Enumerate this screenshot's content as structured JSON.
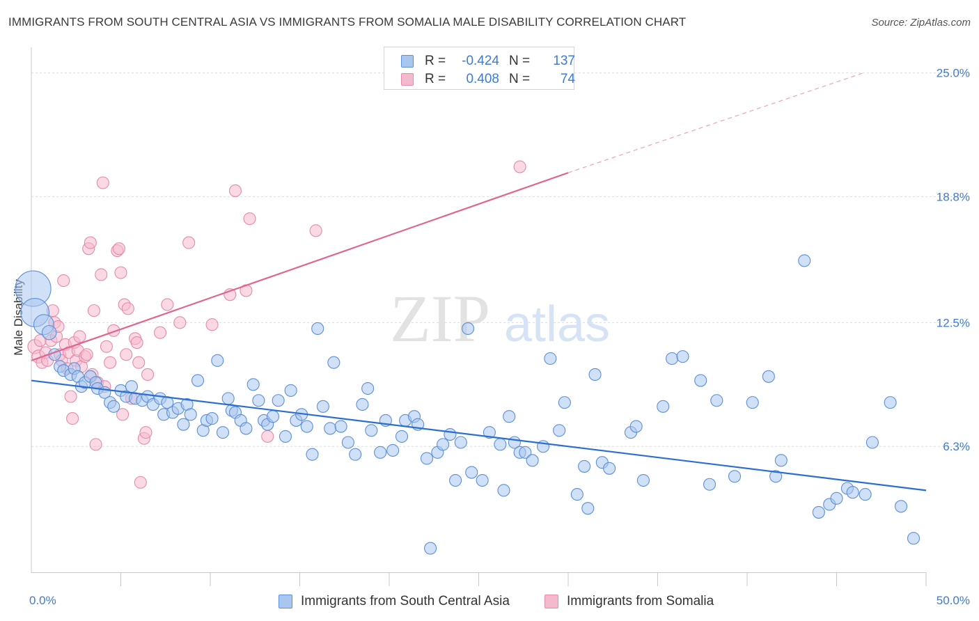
{
  "title": "IMMIGRANTS FROM SOUTH CENTRAL ASIA VS IMMIGRANTS FROM SOMALIA MALE DISABILITY CORRELATION CHART",
  "source": "Source: ZipAtlas.com",
  "watermark": {
    "zip": "ZIP",
    "atlas": "atlas"
  },
  "colors": {
    "blue_fill": "#a9c6ee",
    "blue_stroke": "#5b8fd8",
    "blue_line": "#2a6fd0",
    "pink_fill": "#f5b9cd",
    "pink_stroke": "#e58aaa",
    "pink_line": "#e06691",
    "tick_text": "#3d7bd6",
    "grid": "#dcdcdc"
  },
  "stats": {
    "rows": [
      {
        "r_label": "R =",
        "r_value": "-0.424",
        "n_label": "N =",
        "n_value": "137",
        "series": "blue"
      },
      {
        "r_label": "R =",
        "r_value": "0.408",
        "n_label": "N =",
        "n_value": "74",
        "series": "pink"
      }
    ]
  },
  "legend": {
    "items": [
      {
        "label": "Immigrants from South Central Asia",
        "series": "blue"
      },
      {
        "label": "Immigrants from Somalia",
        "series": "pink"
      }
    ]
  },
  "chart_data": {
    "type": "scatter",
    "title": "IMMIGRANTS FROM SOUTH CENTRAL ASIA VS IMMIGRANTS FROM SOMALIA MALE DISABILITY CORRELATION CHART",
    "xlabel": "",
    "ylabel": "Male Disability",
    "xlim": [
      0,
      50
    ],
    "ylim": [
      0,
      26
    ],
    "x_tick_labels": [
      "0.0%",
      "50.0%"
    ],
    "y_ticks": [
      {
        "value": 6.3,
        "label": "6.3%"
      },
      {
        "value": 12.5,
        "label": "12.5%"
      },
      {
        "value": 18.8,
        "label": "18.8%"
      },
      {
        "value": 25.0,
        "label": "25.0%"
      }
    ],
    "x_minor_ticks": [
      5,
      10,
      15,
      20,
      25,
      30,
      35,
      40,
      45,
      50
    ],
    "grid": true,
    "series": [
      {
        "name": "Immigrants from South Central Asia",
        "color_key": "blue",
        "trendline": {
          "x0": 0,
          "y0": 9.6,
          "x1": 50,
          "y1": 4.1
        },
        "points": [
          [
            0.1,
            14.2,
            3
          ],
          [
            0.2,
            13.0,
            2.4
          ],
          [
            0.7,
            12.4,
            1.7
          ],
          [
            1.0,
            12.0,
            1.2
          ],
          [
            1.3,
            10.9,
            1
          ],
          [
            1.6,
            10.3,
            1
          ],
          [
            1.8,
            10.1,
            1
          ],
          [
            2.2,
            9.9,
            1
          ],
          [
            2.4,
            10.2,
            1
          ],
          [
            2.6,
            9.8,
            1
          ],
          [
            2.8,
            9.3,
            1
          ],
          [
            3.0,
            9.5,
            1
          ],
          [
            3.3,
            9.8,
            1
          ],
          [
            3.6,
            9.5,
            1
          ],
          [
            3.7,
            9.2,
            1
          ],
          [
            4.1,
            9.0,
            1
          ],
          [
            4.4,
            8.5,
            1
          ],
          [
            4.6,
            8.3,
            1
          ],
          [
            5.0,
            9.1,
            1
          ],
          [
            5.3,
            8.8,
            1
          ],
          [
            5.6,
            9.3,
            1
          ],
          [
            5.8,
            8.7,
            1
          ],
          [
            6.2,
            8.6,
            1
          ],
          [
            6.5,
            8.8,
            1
          ],
          [
            6.8,
            8.4,
            1
          ],
          [
            7.2,
            8.7,
            1
          ],
          [
            7.4,
            7.9,
            1
          ],
          [
            7.6,
            8.5,
            1
          ],
          [
            7.9,
            8.0,
            1
          ],
          [
            8.2,
            8.2,
            1
          ],
          [
            8.5,
            7.4,
            1
          ],
          [
            8.7,
            8.4,
            1
          ],
          [
            8.9,
            7.9,
            1
          ],
          [
            9.3,
            9.6,
            1
          ],
          [
            9.6,
            7.1,
            1
          ],
          [
            9.8,
            7.6,
            1
          ],
          [
            10.1,
            7.7,
            1
          ],
          [
            10.4,
            10.6,
            1
          ],
          [
            10.7,
            7.0,
            1
          ],
          [
            11.0,
            8.7,
            1
          ],
          [
            11.2,
            8.1,
            1
          ],
          [
            11.4,
            8.0,
            1
          ],
          [
            11.7,
            7.6,
            1
          ],
          [
            12.0,
            7.2,
            1
          ],
          [
            12.4,
            9.4,
            1
          ],
          [
            12.7,
            8.6,
            1
          ],
          [
            13.0,
            7.6,
            1
          ],
          [
            13.2,
            7.4,
            1
          ],
          [
            13.5,
            7.8,
            1
          ],
          [
            13.8,
            8.6,
            1
          ],
          [
            14.2,
            6.8,
            1
          ],
          [
            14.5,
            9.1,
            1
          ],
          [
            14.8,
            7.6,
            1
          ],
          [
            15.1,
            7.9,
            1
          ],
          [
            15.4,
            7.3,
            1
          ],
          [
            15.7,
            5.9,
            1
          ],
          [
            16.0,
            12.2,
            1
          ],
          [
            16.3,
            8.3,
            1
          ],
          [
            16.7,
            7.2,
            1
          ],
          [
            16.9,
            10.5,
            1
          ],
          [
            17.3,
            7.3,
            1
          ],
          [
            17.7,
            6.5,
            1
          ],
          [
            18.1,
            5.9,
            1
          ],
          [
            18.5,
            8.4,
            1
          ],
          [
            18.8,
            9.2,
            1
          ],
          [
            19.0,
            7.1,
            1
          ],
          [
            19.5,
            6.0,
            1
          ],
          [
            19.8,
            7.6,
            1
          ],
          [
            20.2,
            6.1,
            1
          ],
          [
            20.7,
            6.8,
            1
          ],
          [
            20.9,
            7.6,
            1
          ],
          [
            21.4,
            7.8,
            1
          ],
          [
            21.6,
            7.4,
            1
          ],
          [
            22.1,
            5.7,
            1
          ],
          [
            22.3,
            1.2,
            1
          ],
          [
            22.7,
            6.0,
            1
          ],
          [
            23.0,
            6.4,
            1
          ],
          [
            23.4,
            6.9,
            1
          ],
          [
            23.7,
            4.6,
            1
          ],
          [
            24.0,
            6.5,
            1
          ],
          [
            24.4,
            12.2,
            1
          ],
          [
            24.6,
            5.0,
            1
          ],
          [
            25.2,
            4.6,
            1
          ],
          [
            25.6,
            7.0,
            1
          ],
          [
            26.2,
            6.4,
            1
          ],
          [
            26.4,
            4.1,
            1
          ],
          [
            26.7,
            7.8,
            1
          ],
          [
            27.0,
            6.5,
            1
          ],
          [
            27.3,
            6.0,
            1
          ],
          [
            27.6,
            6.0,
            1
          ],
          [
            28.0,
            5.6,
            1
          ],
          [
            28.6,
            6.3,
            1
          ],
          [
            29.0,
            10.7,
            1
          ],
          [
            29.5,
            7.1,
            1
          ],
          [
            29.8,
            8.5,
            1
          ],
          [
            30.5,
            3.9,
            1
          ],
          [
            30.9,
            5.3,
            1
          ],
          [
            31.1,
            3.2,
            1
          ],
          [
            31.5,
            9.9,
            1
          ],
          [
            31.9,
            5.5,
            1
          ],
          [
            32.3,
            5.2,
            1
          ],
          [
            33.5,
            7.0,
            1
          ],
          [
            33.8,
            7.3,
            1
          ],
          [
            34.2,
            4.6,
            1
          ],
          [
            35.3,
            8.3,
            1
          ],
          [
            35.8,
            10.7,
            1
          ],
          [
            36.4,
            10.8,
            1
          ],
          [
            37.4,
            9.6,
            1
          ],
          [
            37.9,
            4.4,
            1
          ],
          [
            38.3,
            8.6,
            1
          ],
          [
            39.3,
            4.8,
            1
          ],
          [
            40.3,
            8.5,
            1
          ],
          [
            41.2,
            9.8,
            1
          ],
          [
            41.6,
            4.8,
            1
          ],
          [
            41.9,
            5.6,
            1
          ],
          [
            43.2,
            15.6,
            1
          ],
          [
            44.0,
            3.0,
            1
          ],
          [
            44.6,
            3.4,
            1
          ],
          [
            45.0,
            3.7,
            1
          ],
          [
            45.6,
            4.2,
            1
          ],
          [
            45.9,
            4.0,
            1
          ],
          [
            46.6,
            3.9,
            1
          ],
          [
            47.0,
            6.5,
            1
          ],
          [
            48.0,
            8.5,
            1
          ],
          [
            48.6,
            3.3,
            1
          ],
          [
            49.3,
            1.7,
            1
          ]
        ]
      },
      {
        "name": "Immigrants from Somalia",
        "color_key": "pink",
        "trendline": {
          "x0": 0,
          "y0": 10.6,
          "x1": 30,
          "y1": 20.0,
          "dashed_to": {
            "x": 46.5,
            "y": 25.0
          }
        },
        "points": [
          [
            0.2,
            11.3,
            1.2
          ],
          [
            0.4,
            10.8,
            1.1
          ],
          [
            0.5,
            11.6,
            1
          ],
          [
            0.6,
            10.5,
            1
          ],
          [
            0.8,
            11.0,
            1
          ],
          [
            0.9,
            10.6,
            1
          ],
          [
            1.1,
            11.6,
            1
          ],
          [
            1.2,
            13.1,
            1
          ],
          [
            1.3,
            12.5,
            1
          ],
          [
            1.4,
            11.8,
            1
          ],
          [
            1.5,
            12.3,
            1
          ],
          [
            1.6,
            10.9,
            1
          ],
          [
            1.7,
            10.6,
            1
          ],
          [
            1.8,
            14.6,
            1
          ],
          [
            1.9,
            11.4,
            1
          ],
          [
            2.0,
            10.2,
            1
          ],
          [
            2.1,
            11.0,
            1
          ],
          [
            2.2,
            8.8,
            1
          ],
          [
            2.3,
            7.7,
            1
          ],
          [
            2.4,
            11.5,
            1
          ],
          [
            2.5,
            10.6,
            1
          ],
          [
            2.6,
            11.1,
            1
          ],
          [
            2.7,
            11.8,
            1
          ],
          [
            2.8,
            10.3,
            1
          ],
          [
            3.0,
            10.8,
            1
          ],
          [
            3.1,
            10.9,
            1
          ],
          [
            3.2,
            16.2,
            1
          ],
          [
            3.3,
            16.5,
            1
          ],
          [
            3.4,
            9.9,
            1
          ],
          [
            3.5,
            13.1,
            1
          ],
          [
            3.6,
            6.4,
            1
          ],
          [
            3.7,
            9.5,
            1
          ],
          [
            3.9,
            14.9,
            1
          ],
          [
            4.0,
            19.5,
            1
          ],
          [
            4.1,
            9.3,
            1
          ],
          [
            4.2,
            11.3,
            1
          ],
          [
            4.4,
            10.5,
            1
          ],
          [
            4.6,
            12.1,
            1
          ],
          [
            4.8,
            16.1,
            1
          ],
          [
            4.9,
            16.2,
            1
          ],
          [
            5.0,
            15.0,
            1
          ],
          [
            5.1,
            7.9,
            1
          ],
          [
            5.2,
            13.4,
            1
          ],
          [
            5.3,
            10.9,
            1
          ],
          [
            5.4,
            13.2,
            1
          ],
          [
            5.6,
            8.7,
            1
          ],
          [
            5.8,
            11.7,
            1
          ],
          [
            5.9,
            11.5,
            1
          ],
          [
            6.0,
            10.5,
            1
          ],
          [
            6.1,
            4.5,
            1
          ],
          [
            6.3,
            6.7,
            1
          ],
          [
            6.4,
            7.0,
            1
          ],
          [
            6.5,
            9.9,
            1
          ],
          [
            7.2,
            12.0,
            1
          ],
          [
            7.6,
            13.4,
            1
          ],
          [
            8.3,
            12.5,
            1
          ],
          [
            8.8,
            16.5,
            1
          ],
          [
            10.1,
            12.4,
            1
          ],
          [
            11.1,
            13.9,
            1
          ],
          [
            11.4,
            19.1,
            1
          ],
          [
            12.0,
            14.1,
            1
          ],
          [
            12.2,
            17.7,
            1
          ],
          [
            13.2,
            6.8,
            1
          ],
          [
            15.9,
            17.1,
            1
          ],
          [
            27.3,
            20.3,
            1
          ]
        ]
      }
    ]
  }
}
